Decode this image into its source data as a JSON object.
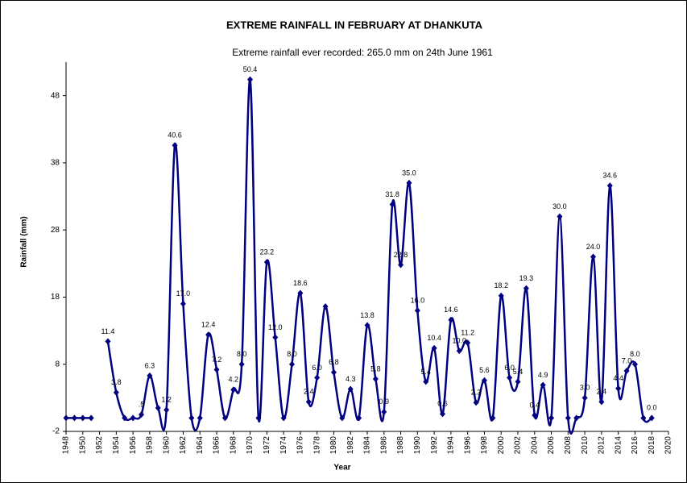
{
  "chart_data": {
    "type": "line",
    "title": "EXTREME RAINFALL  IN FEBRUARY AT DHANKUTA",
    "subtitle": "Extreme rainfall ever recorded: 265.0 mm on 24th June 1961",
    "x_label": "Year",
    "y_label": "Rainfall (mm)",
    "x": [
      1948,
      1949,
      1950,
      1951,
      1952,
      1953,
      1954,
      1955,
      1956,
      1957,
      1958,
      1959,
      1960,
      1961,
      1962,
      1963,
      1964,
      1965,
      1966,
      1967,
      1968,
      1969,
      1970,
      1971,
      1972,
      1973,
      1974,
      1975,
      1976,
      1977,
      1978,
      1979,
      1980,
      1981,
      1982,
      1983,
      1984,
      1985,
      1986,
      1987,
      1988,
      1989,
      1990,
      1991,
      1992,
      1993,
      1994,
      1995,
      1996,
      1997,
      1998,
      1999,
      2000,
      2001,
      2002,
      2003,
      2004,
      2005,
      2006,
      2007,
      2008,
      2009,
      2010,
      2011,
      2012,
      2013,
      2014,
      2015,
      2016,
      2017,
      2018
    ],
    "series": [
      {
        "name": "Rainfall",
        "color": "#000080",
        "values": [
          0,
          0,
          0,
          0,
          null,
          11.4,
          3.8,
          0,
          0,
          0.5,
          6.3,
          1.5,
          1.2,
          40.6,
          17.0,
          0,
          0,
          12.4,
          7.2,
          0,
          4.2,
          8.0,
          50.4,
          0,
          23.2,
          12.0,
          0,
          8.0,
          18.6,
          2.4,
          6.0,
          16.6,
          6.8,
          0,
          4.3,
          0,
          13.8,
          5.8,
          0.9,
          31.8,
          22.8,
          35.0,
          16.0,
          5.4,
          10.4,
          0.6,
          14.6,
          10.0,
          11.2,
          2.3,
          5.6,
          0,
          18.2,
          6.0,
          5.4,
          19.3,
          0.4,
          4.9,
          0,
          30.0,
          0,
          0,
          3.0,
          24.0,
          2.4,
          34.6,
          4.4,
          7.0,
          8.0,
          0,
          0.0
        ],
        "value_labels": [
          null,
          null,
          null,
          null,
          null,
          "11.4",
          "3.8",
          null,
          null,
          ".5",
          "6.3",
          null,
          "1.2",
          "40.6",
          "17.0",
          null,
          null,
          "12.4",
          "7.2",
          null,
          "4.2",
          "8.0",
          "50.4",
          null,
          "23.2",
          "12.0",
          null,
          "8.0",
          "18.6",
          "2.4",
          "6.0",
          null,
          "6.8",
          null,
          "4.3",
          null,
          "13.8",
          "5.8",
          "0.9",
          "31.8",
          "22.8",
          "35.0",
          "16.0",
          "5.4",
          "10.4",
          "0.6",
          "14.6",
          "10.0",
          "11.2",
          "2.3",
          "5.6",
          null,
          "18.2",
          "6.0",
          "5.4",
          "19.3",
          "0.4",
          "4.9",
          null,
          "30.0",
          null,
          null,
          "3.0",
          "24.0",
          "2.4",
          "34.6",
          "4.4",
          "7.0",
          "8.0",
          null,
          "0.0"
        ]
      }
    ],
    "xlim": [
      1948,
      2020
    ],
    "xticks": [
      1948,
      1950,
      1952,
      1954,
      1956,
      1958,
      1960,
      1962,
      1964,
      1966,
      1968,
      1970,
      1972,
      1974,
      1976,
      1978,
      1980,
      1982,
      1984,
      1986,
      1988,
      1990,
      1992,
      1994,
      1996,
      1998,
      2000,
      2002,
      2004,
      2006,
      2008,
      2010,
      2012,
      2014,
      2016,
      2018,
      2020
    ],
    "ylim": [
      -2,
      53
    ],
    "yticks": [
      -2,
      8,
      18,
      28,
      38,
      48
    ],
    "grid": false
  }
}
